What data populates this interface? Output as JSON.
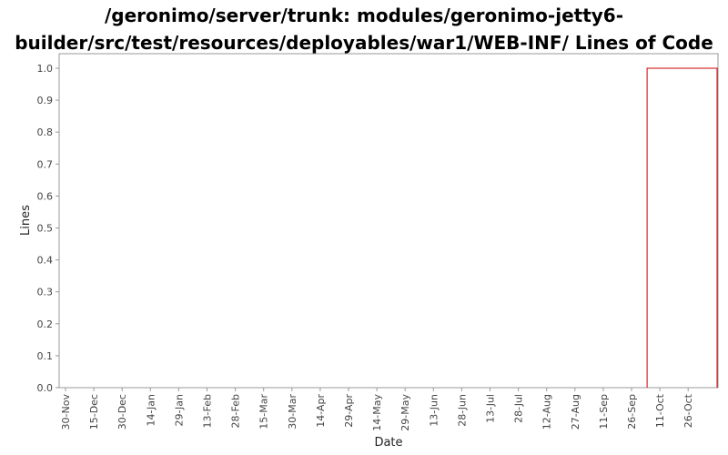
{
  "chart_data": {
    "type": "area",
    "title_lines": [
      "/geronimo/server/trunk: modules/geronimo-jetty6-",
      "builder/src/test/resources/deployables/war1/WEB-INF/ Lines of Code"
    ],
    "xlabel": "Date",
    "ylabel": "Lines",
    "ylim": [
      0.0,
      1.0
    ],
    "y_ticks": [
      0.0,
      0.1,
      0.2,
      0.3,
      0.4,
      0.5,
      0.6,
      0.7,
      0.8,
      0.9,
      1.0
    ],
    "x_ticks": [
      "30-Nov",
      "15-Dec",
      "30-Dec",
      "14-Jan",
      "29-Jan",
      "13-Feb",
      "28-Feb",
      "15-Mar",
      "30-Mar",
      "14-Apr",
      "29-Apr",
      "14-May",
      "29-May",
      "13-Jun",
      "28-Jun",
      "13-Jul",
      "28-Jul",
      "12-Aug",
      "27-Aug",
      "11-Sep",
      "26-Sep",
      "11-Oct",
      "26-Oct"
    ],
    "series": [
      {
        "values": [
          {
            "x_tick_index": 20.55,
            "y": 0.0
          },
          {
            "x_tick_index": 20.55,
            "y": 1.0
          },
          {
            "x_tick_index": 23.5,
            "y": 1.0
          },
          {
            "x_tick_index": 23.5,
            "y": 0.0
          }
        ],
        "color": "#cc0000"
      }
    ],
    "grid": false,
    "legend": "none"
  }
}
